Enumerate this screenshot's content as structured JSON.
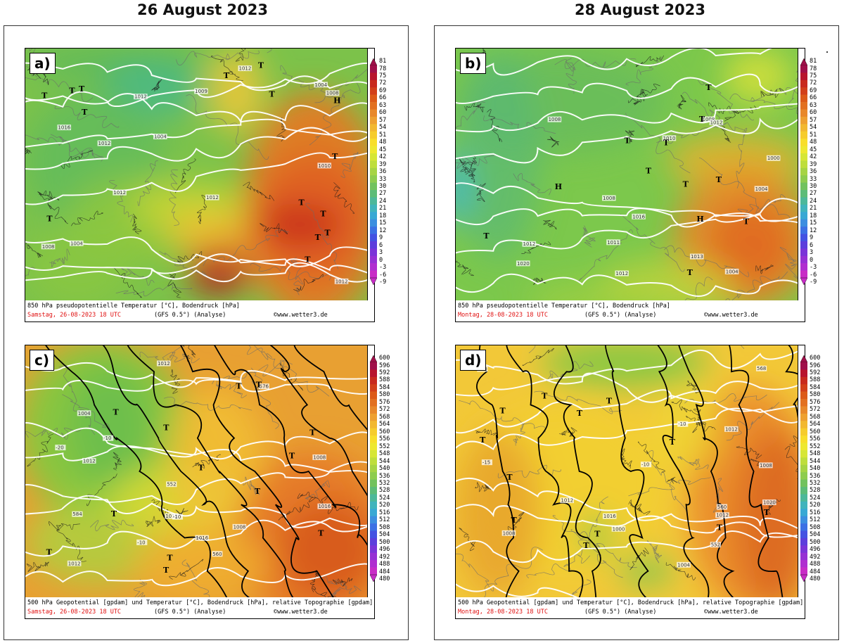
{
  "headers": {
    "left": "26 August 2023",
    "right": "28 August 2023"
  },
  "panels": [
    {
      "label": "a)",
      "caption_line1": "850 hPa pseudopotentielle Temperatur [°C], Bodendruck [hPa]",
      "date": "Samstag, 26-08-2023  18 UTC",
      "model": "(GFS 0.5°)  (Analyse)",
      "copyright": "©www.wetter3.de",
      "scale_ticks": [
        "81",
        "78",
        "75",
        "72",
        "69",
        "66",
        "63",
        "60",
        "57",
        "54",
        "51",
        "48",
        "45",
        "42",
        "39",
        "36",
        "33",
        "30",
        "27",
        "24",
        "21",
        "18",
        "15",
        "12",
        "9",
        "6",
        "3",
        "0",
        "-3",
        "-6",
        "-9"
      ],
      "pressure_labels": [
        "1004",
        "1004",
        "1008",
        "1012",
        "1010",
        "1012",
        "1012",
        "1012",
        "1012",
        "1016",
        "1012",
        "1008",
        "1004",
        "1009"
      ],
      "highlow_labels": [
        "T",
        "T",
        "T",
        "T",
        "T",
        "T",
        "T",
        "T",
        "T",
        "T",
        "T",
        "T",
        "T",
        "T",
        "H"
      ]
    },
    {
      "label": "b)",
      "caption_line1": "850 hPa pseudopotentielle Temperatur [°C], Bodendruck [hPa]",
      "date": "Montag, 28-08-2023  18 UTC",
      "model": "(GFS 0.5°)  (Analyse)",
      "copyright": "©www.wetter3.de",
      "scale_ticks": [
        "81",
        "78",
        "75",
        "72",
        "69",
        "66",
        "63",
        "60",
        "57",
        "54",
        "51",
        "48",
        "45",
        "42",
        "39",
        "36",
        "33",
        "30",
        "27",
        "24",
        "21",
        "18",
        "15",
        "12",
        "9",
        "6",
        "3",
        "0",
        "-3",
        "-6",
        "-9"
      ],
      "pressure_labels": [
        "1004",
        "1008",
        "1012",
        "1008",
        "1012",
        "1013",
        "1012",
        "1011",
        "1010",
        "1008",
        "1004",
        "1016",
        "1020",
        "1000"
      ],
      "highlow_labels": [
        "T",
        "T",
        "T",
        "T",
        "T",
        "T",
        "T",
        "T",
        "T",
        "T",
        "H",
        "H"
      ]
    },
    {
      "label": "c)",
      "caption_line1": "500 hPa Geopotential [gpdam] und Temperatur [°C], Bodendruck [hPa], relative Topographie [gpdam]",
      "date": "Samstag, 26-08-2023  18 UTC",
      "model": "(GFS 0.5°)  (Analyse)",
      "copyright": "©www.wetter3.de",
      "scale_ticks": [
        "600",
        "596",
        "592",
        "588",
        "584",
        "580",
        "576",
        "572",
        "568",
        "564",
        "560",
        "556",
        "552",
        "548",
        "544",
        "540",
        "536",
        "532",
        "528",
        "524",
        "520",
        "516",
        "512",
        "508",
        "504",
        "500",
        "496",
        "492",
        "488",
        "484",
        "480"
      ],
      "pressure_labels": [
        "1008",
        "1012",
        "1016",
        "1012",
        "1008",
        "1012",
        "1012",
        "1016",
        "1004",
        "-10",
        "-20",
        "-10",
        "-10",
        "560",
        "576",
        "584",
        "552"
      ],
      "highlow_labels": [
        "T",
        "T",
        "T",
        "T",
        "T",
        "T",
        "T",
        "T",
        "T",
        "T",
        "T",
        "T",
        "T"
      ]
    },
    {
      "label": "d)",
      "caption_line1": "500 hPa Geopotential [gpdam] und Temperatur [°C], Bodendruck [hPa], relative Topographie [gpdam]",
      "date": "Montag, 28-08-2023  18 UTC",
      "model": "(GFS 0.5°)  (Analyse)",
      "copyright": "©www.wetter3.de",
      "scale_ticks": [
        "600",
        "596",
        "592",
        "588",
        "584",
        "580",
        "576",
        "572",
        "568",
        "564",
        "560",
        "556",
        "552",
        "548",
        "544",
        "540",
        "536",
        "532",
        "528",
        "524",
        "520",
        "516",
        "512",
        "508",
        "504",
        "500",
        "496",
        "492",
        "488",
        "484",
        "480"
      ],
      "pressure_labels": [
        "1012",
        "1008",
        "1012",
        "1012",
        "1016",
        "1000",
        "1008",
        "1004",
        "1020",
        "-10",
        "-15",
        "-10",
        "560",
        "560",
        "568",
        "552"
      ],
      "highlow_labels": [
        "T",
        "T",
        "T",
        "T",
        "T",
        "T",
        "T",
        "T",
        "T",
        "T",
        "T",
        "T"
      ]
    }
  ]
}
